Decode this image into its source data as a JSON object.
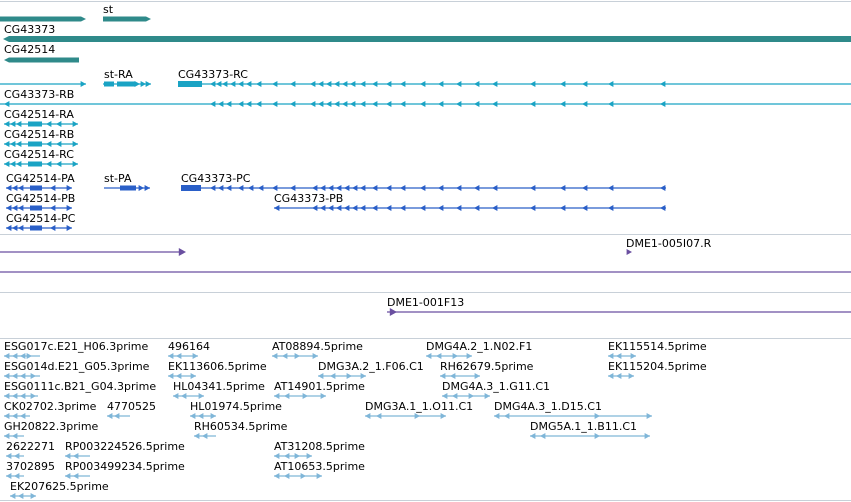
{
  "colors": {
    "gene": "#2f8a8a",
    "transcript_rna": "#1aa3c4",
    "transcript_protein": "#2a5fc8",
    "clone": "#6a4fa0",
    "est": "#7fb6d8",
    "divider": "#c8d0d8"
  },
  "tracks": {
    "gene": {
      "labels": [
        "st",
        "CG43373",
        "CG42514"
      ]
    },
    "rna": {
      "labels": [
        "st-RA",
        "CG43373-RC",
        "CG43373-RB",
        "CG42514-RA",
        "CG42514-RB",
        "CG42514-RC"
      ]
    },
    "protein": {
      "labels": [
        "CG42514-PA",
        "st-PA",
        "CG43373-PC",
        "CG42514-PB",
        "CG43373-PB",
        "CG42514-PC"
      ]
    },
    "clone": {
      "labels": [
        "DME1-005I07.R",
        "DME1-001F13"
      ]
    },
    "est": {
      "labels": [
        "ESG017c.E21_H06.3prime",
        "496164",
        "AT08894.5prime",
        "DMG4A.2_1.N02.F1",
        "EK115514.5prime",
        "ESG014d.E21_G05.3prime",
        "EK113606.5prime",
        "DMG3A.2_1.F06.C1",
        "RH62679.5prime",
        "EK115204.5prime",
        "ESG0111c.B21_G04.3prime",
        "HL04341.5prime",
        "AT14901.5prime",
        "DMG4A.3_1.G11.C1",
        "CK02702.3prime",
        "4770525",
        "HL01974.5prime",
        "DMG3A.1_1.O11.C1",
        "DMG4A.3_1.D15.C1",
        "GH20822.3prime",
        "RH60534.5prime",
        "DMG5A.1_1.B11.C1",
        "AT31208.5prime",
        "2622271",
        "RP003224526.5prime",
        "3702895",
        "RP003499234.5prime",
        "AT10653.5prime",
        "EK207625.5prime"
      ]
    }
  }
}
